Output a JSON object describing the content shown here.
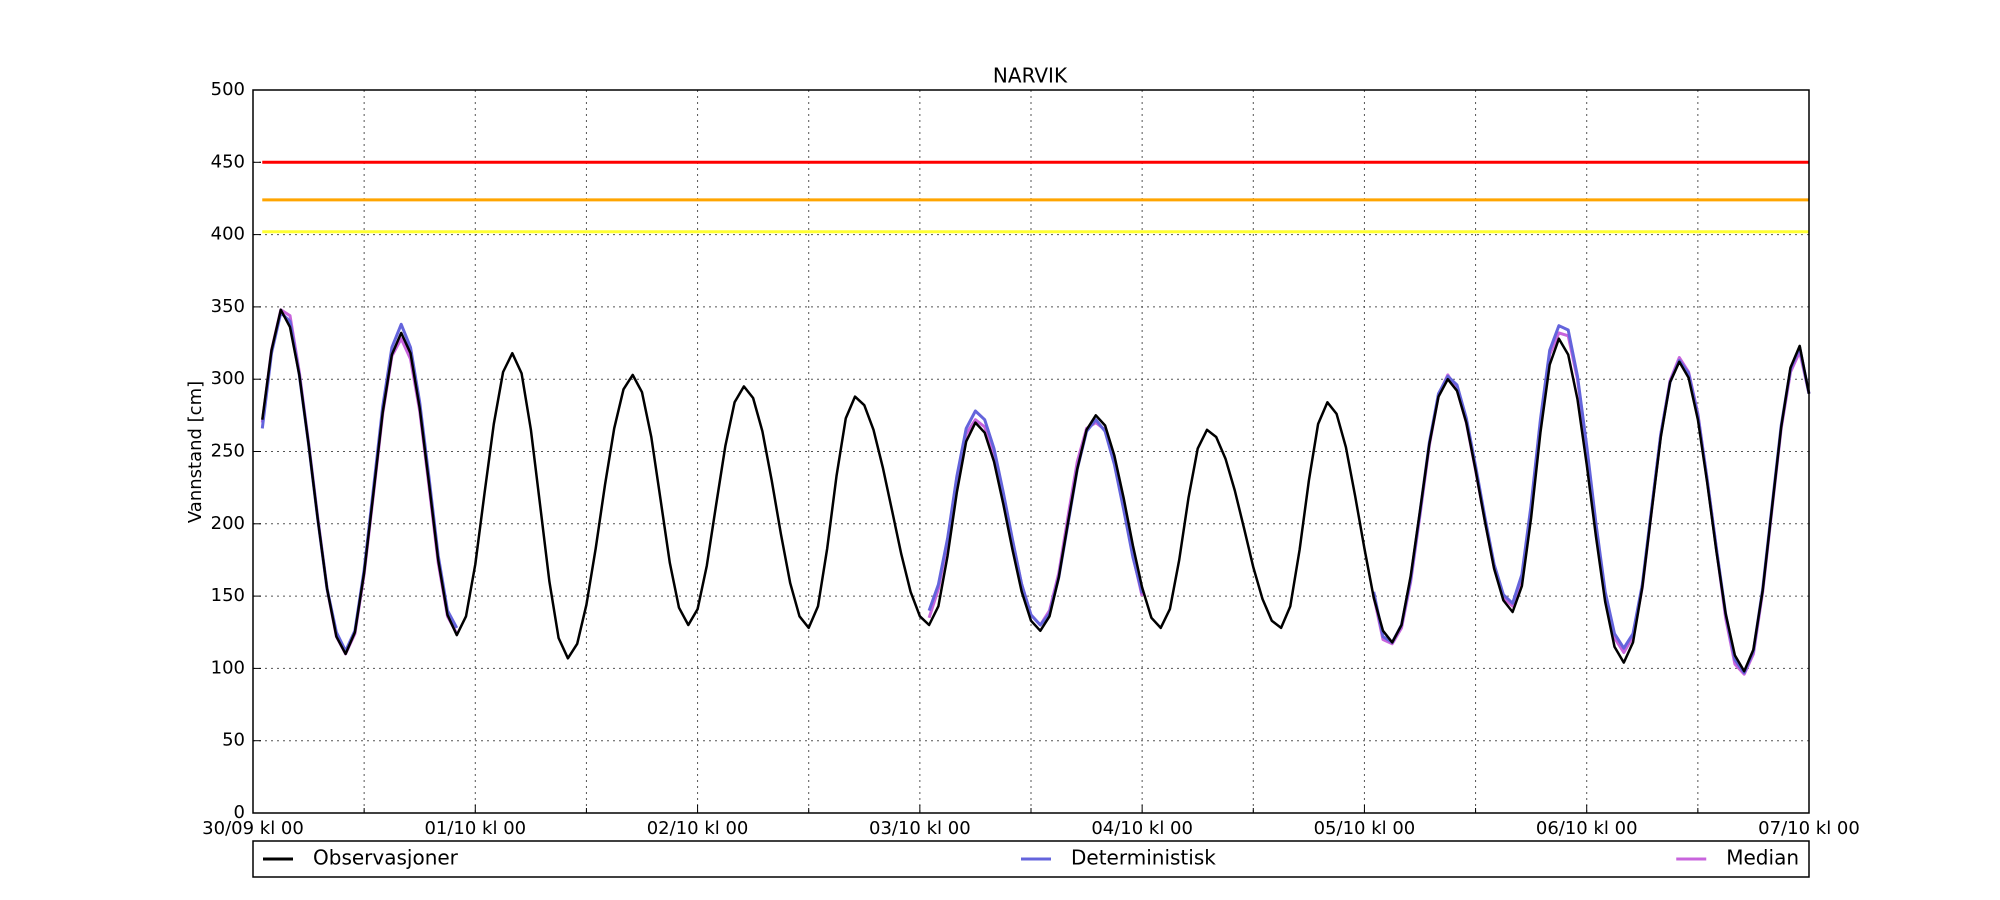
{
  "chart_data": {
    "type": "line",
    "title": "NARVIK",
    "ylabel": "Vannstand [cm]",
    "x": [
      1,
      2,
      3,
      4,
      5,
      6,
      7,
      8,
      9,
      10,
      11,
      12,
      13,
      14,
      15,
      16,
      17,
      18,
      19,
      20,
      21,
      22,
      23,
      24,
      25,
      26,
      27,
      28,
      29,
      30,
      31,
      32,
      33,
      34,
      35,
      36,
      37,
      38,
      39,
      40,
      41,
      42,
      43,
      44,
      45,
      46,
      47,
      48,
      49,
      50,
      51,
      52,
      53,
      54,
      55,
      56,
      57,
      58,
      59,
      60,
      61,
      62,
      63,
      64,
      65,
      66,
      67,
      68,
      69,
      70,
      71,
      72,
      73,
      74,
      75,
      76,
      77,
      78,
      79,
      80,
      81,
      82,
      83,
      84,
      85,
      86,
      87,
      88,
      89,
      90,
      91,
      92,
      93,
      94,
      95,
      96,
      97,
      98,
      99,
      100,
      101,
      102,
      103,
      104,
      105,
      106,
      107,
      108,
      109,
      110,
      111,
      112,
      113,
      114,
      115,
      116,
      117,
      118,
      119,
      120,
      121,
      122,
      123,
      124,
      125,
      126,
      127,
      128,
      129,
      130,
      131,
      132,
      133,
      134,
      135,
      136,
      137,
      138,
      139,
      140,
      141,
      142,
      143,
      144,
      145,
      146,
      147,
      148,
      149,
      150,
      151,
      152,
      153,
      154,
      155,
      156,
      157,
      158,
      159,
      160,
      161,
      162,
      163,
      164,
      165,
      166,
      167,
      168
    ],
    "series": [
      {
        "name": "Observasjoner",
        "color": "#000000",
        "values": [
          272,
          320,
          348,
          336,
          303,
          255,
          203,
          155,
          122,
          110,
          125,
          166,
          221,
          277,
          317,
          332,
          318,
          280,
          228,
          175,
          137,
          123,
          136,
          172,
          221,
          269,
          305,
          318,
          304,
          265,
          213,
          160,
          121,
          107,
          117,
          144,
          183,
          227,
          266,
          293,
          303,
          291,
          260,
          217,
          173,
          142,
          130,
          141,
          171,
          213,
          254,
          284,
          295,
          287,
          264,
          230,
          193,
          159,
          136,
          128,
          143,
          183,
          233,
          273,
          288,
          282,
          265,
          239,
          209,
          179,
          153,
          136,
          130,
          143,
          178,
          222,
          257,
          270,
          263,
          243,
          214,
          182,
          153,
          133,
          126,
          136,
          163,
          201,
          238,
          265,
          275,
          268,
          247,
          218,
          185,
          156,
          135,
          128,
          141,
          175,
          218,
          252,
          265,
          260,
          245,
          223,
          197,
          170,
          148,
          133,
          128,
          143,
          182,
          230,
          269,
          284,
          276,
          253,
          219,
          183,
          149,
          126,
          118,
          130,
          164,
          209,
          255,
          288,
          300,
          292,
          270,
          237,
          202,
          169,
          147,
          139,
          157,
          204,
          263,
          310,
          328,
          317,
          286,
          241,
          191,
          146,
          115,
          104,
          118,
          156,
          208,
          260,
          298,
          312,
          301,
          272,
          229,
          181,
          138,
          109,
          98,
          113,
          154,
          211,
          267,
          308,
          323,
          290
        ]
      },
      {
        "name": "Deterministisk",
        "color": "#6464dc",
        "values": [
          266,
          318,
          346,
          340,
          303,
          255,
          203,
          155,
          125,
          112,
          126,
          168,
          224,
          281,
          322,
          338,
          322,
          284,
          232,
          178,
          140,
          128,
          null,
          null,
          null,
          null,
          null,
          null,
          null,
          null,
          null,
          null,
          null,
          null,
          null,
          null,
          null,
          null,
          null,
          null,
          null,
          null,
          null,
          null,
          null,
          null,
          null,
          null,
          null,
          null,
          null,
          null,
          null,
          null,
          null,
          null,
          null,
          null,
          null,
          null,
          null,
          null,
          null,
          null,
          null,
          null,
          null,
          null,
          null,
          null,
          null,
          null,
          140,
          158,
          190,
          233,
          266,
          278,
          272,
          252,
          222,
          189,
          158,
          137,
          130,
          138,
          163,
          200,
          238,
          264,
          272,
          264,
          241,
          210,
          177,
          152,
          null,
          null,
          null,
          null,
          null,
          null,
          null,
          null,
          null,
          null,
          null,
          null,
          null,
          null,
          null,
          null,
          null,
          null,
          null,
          null,
          null,
          null,
          null,
          null,
          153,
          122,
          118,
          130,
          162,
          208,
          256,
          290,
          302,
          296,
          273,
          240,
          205,
          172,
          151,
          145,
          165,
          213,
          272,
          320,
          337,
          334,
          302,
          254,
          200,
          153,
          124,
          114,
          124,
          158,
          210,
          262,
          298,
          313,
          304,
          275,
          231,
          183,
          138,
          106,
          97,
          112,
          155,
          212,
          268,
          307,
          322,
          290
        ]
      },
      {
        "name": "Median",
        "color": "#c864dc",
        "values": [
          270,
          320,
          348,
          344,
          305,
          256,
          204,
          155,
          122,
          110,
          124,
          165,
          220,
          276,
          316,
          328,
          314,
          278,
          226,
          173,
          136,
          124,
          null,
          null,
          null,
          null,
          null,
          null,
          null,
          null,
          null,
          null,
          null,
          null,
          null,
          null,
          null,
          null,
          null,
          null,
          null,
          null,
          null,
          null,
          null,
          null,
          null,
          null,
          null,
          null,
          null,
          null,
          null,
          null,
          null,
          null,
          null,
          null,
          null,
          null,
          null,
          null,
          null,
          null,
          null,
          null,
          null,
          null,
          null,
          null,
          null,
          null,
          135,
          155,
          188,
          232,
          262,
          272,
          267,
          248,
          220,
          188,
          158,
          137,
          130,
          140,
          166,
          205,
          243,
          266,
          270,
          265,
          244,
          212,
          178,
          150,
          null,
          null,
          null,
          null,
          null,
          null,
          null,
          null,
          null,
          null,
          null,
          null,
          null,
          null,
          null,
          null,
          null,
          null,
          null,
          null,
          null,
          null,
          null,
          null,
          150,
          120,
          117,
          128,
          160,
          206,
          254,
          289,
          303,
          293,
          270,
          237,
          203,
          170,
          149,
          143,
          163,
          211,
          270,
          317,
          332,
          330,
          300,
          252,
          198,
          150,
          121,
          111,
          122,
          156,
          209,
          262,
          299,
          315,
          305,
          276,
          231,
          183,
          135,
          103,
          96,
          110,
          153,
          210,
          266,
          305,
          319,
          290
        ]
      }
    ],
    "hlines": [
      {
        "value": 450,
        "color": "#ff0000"
      },
      {
        "value": 424,
        "color": "#ffa500"
      },
      {
        "value": 402,
        "color": "#ffff33"
      }
    ],
    "xlim": [
      0,
      168
    ],
    "xticks": [
      {
        "value": 0,
        "label": "30/09 kl 00"
      },
      {
        "value": 24,
        "label": "01/10 kl 00"
      },
      {
        "value": 48,
        "label": "02/10 kl 00"
      },
      {
        "value": 72,
        "label": "03/10 kl 00"
      },
      {
        "value": 96,
        "label": "04/10 kl 00"
      },
      {
        "value": 120,
        "label": "05/10 kl 00"
      },
      {
        "value": 144,
        "label": "06/10 kl 00"
      },
      {
        "value": 168,
        "label": "07/10 kl 00"
      }
    ],
    "x_minor_ticks": [
      12,
      36,
      60,
      84,
      108,
      132,
      156
    ],
    "ylim": [
      0,
      500
    ],
    "yticks": [
      0,
      50,
      100,
      150,
      200,
      250,
      300,
      350,
      400,
      450,
      500
    ],
    "grid": true,
    "legend": "below"
  }
}
